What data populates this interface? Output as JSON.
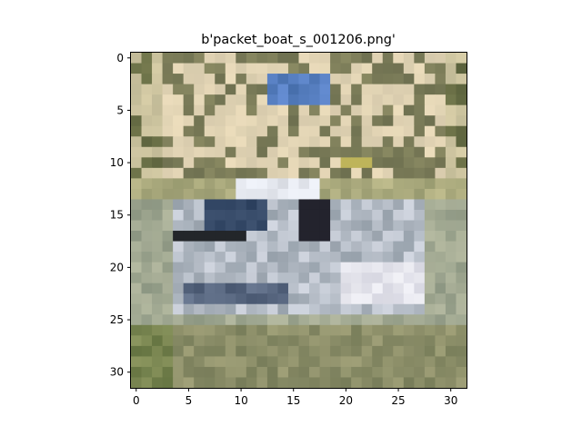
{
  "title": "b'packet_boat_s_001206.png'",
  "image": {
    "grid_size": 32,
    "description_rows": 32
  },
  "axes": {
    "x_ticks": [
      "0",
      "5",
      "10",
      "15",
      "20",
      "25",
      "30"
    ],
    "y_ticks": [
      "0",
      "5",
      "10",
      "15",
      "20",
      "25",
      "30"
    ],
    "x_range": [
      -0.5,
      31.5
    ],
    "y_range": [
      31.5,
      -0.5
    ]
  },
  "colors": {
    "frame": "#000000",
    "background": "#ffffff"
  }
}
